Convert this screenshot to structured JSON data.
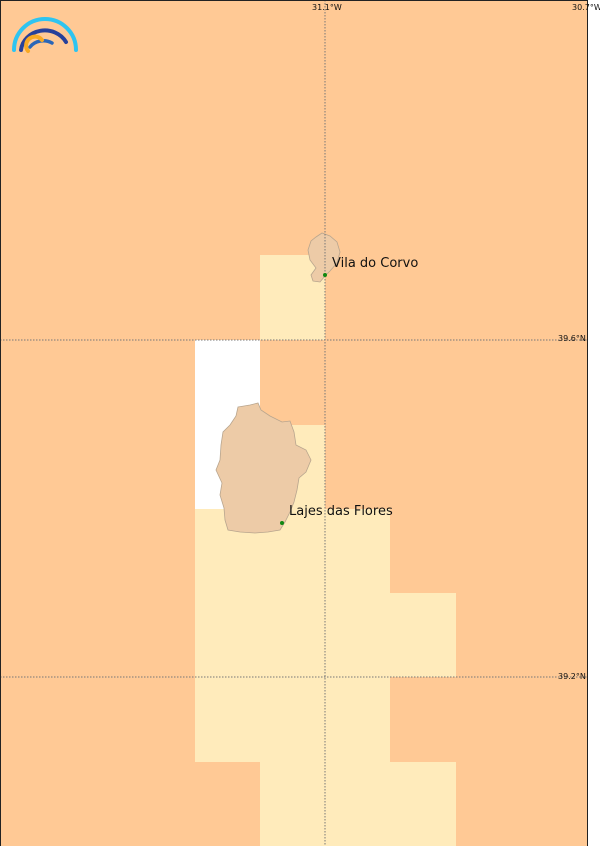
{
  "map": {
    "colors": {
      "sea_high": "#FFC995",
      "sea_low": "#FFEBBB",
      "no_data": "#FFFFFF",
      "land": "#EDCBA7",
      "coast": "#B8A58E",
      "gridline": "#777777",
      "place_dot": "#118811"
    },
    "grid_labels": {
      "lon": [
        "31.1°W",
        "30.7°W"
      ],
      "lat": [
        "39.6°N",
        "39.2°N"
      ]
    },
    "places": [
      {
        "name": "Vila do Corvo"
      },
      {
        "name": "Lajes das Flores"
      }
    ],
    "logo": "arc-rainbow-logo"
  }
}
